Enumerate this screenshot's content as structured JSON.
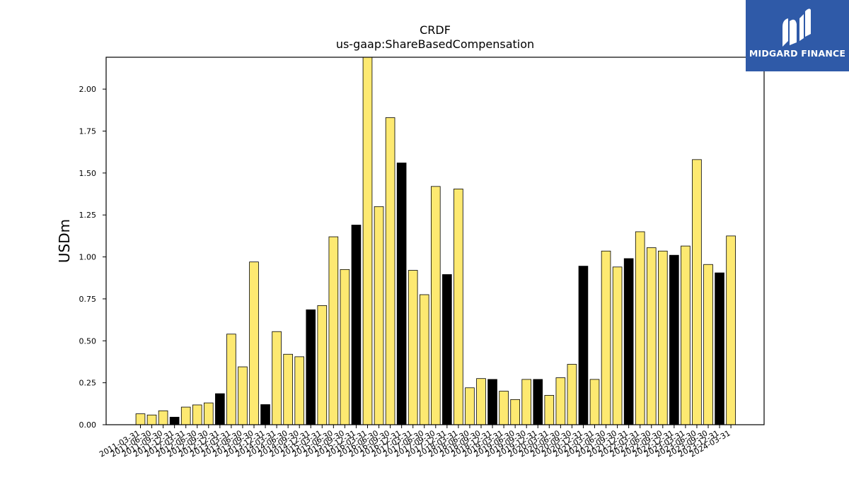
{
  "logo": {
    "text": "MIDGARD FINANCE",
    "icon": "midgard-logo-icon",
    "background": "#2f5aa8"
  },
  "chart_data": {
    "type": "bar",
    "title": "CRDF",
    "subtitle": "us-gaap:ShareBasedCompensation",
    "xlabel": "",
    "ylabel": "USDm",
    "ylim": [
      0,
      2.19
    ],
    "yticks": [
      "0.00",
      "0.25",
      "0.50",
      "0.75",
      "1.00",
      "1.25",
      "1.50",
      "1.75",
      "2.00"
    ],
    "grid": false,
    "colors": {
      "default": "#fde971",
      "highlight": "#000000",
      "edge": "#000000"
    },
    "categories": [
      "2011-03-31",
      "2011-06-30",
      "2011-09-30",
      "2011-12-31",
      "2012-03-31",
      "2012-06-30",
      "2012-09-30",
      "2012-12-31",
      "2013-03-31",
      "2013-06-30",
      "2013-09-30",
      "2013-12-31",
      "2014-03-31",
      "2014-06-30",
      "2014-09-30",
      "2014-12-31",
      "2015-03-31",
      "2015-06-30",
      "2015-09-30",
      "2015-12-31",
      "2016-03-31",
      "2016-06-30",
      "2016-09-30",
      "2016-12-31",
      "2017-03-31",
      "2017-06-30",
      "2017-09-30",
      "2017-12-31",
      "2018-03-31",
      "2018-06-30",
      "2018-09-30",
      "2018-12-31",
      "2019-03-31",
      "2019-06-30",
      "2019-09-30",
      "2019-12-31",
      "2020-03-31",
      "2020-06-30",
      "2020-09-30",
      "2020-12-31",
      "2021-03-31",
      "2021-06-30",
      "2021-09-30",
      "2021-12-31",
      "2022-03-31",
      "2022-06-30",
      "2022-09-30",
      "2022-12-31",
      "2023-03-31",
      "2023-06-30",
      "2023-09-30",
      "2023-12-31",
      "2024-03-31"
    ],
    "values": [
      0.065,
      0.058,
      0.083,
      0.045,
      0.105,
      0.118,
      0.13,
      0.185,
      0.54,
      0.345,
      0.97,
      0.12,
      0.555,
      0.42,
      0.405,
      0.685,
      0.71,
      1.12,
      0.925,
      1.19,
      2.19,
      1.3,
      1.83,
      1.56,
      0.92,
      0.775,
      1.42,
      0.895,
      1.405,
      0.22,
      0.275,
      0.27,
      0.2,
      0.15,
      0.27,
      0.27,
      0.175,
      0.28,
      0.36,
      0.945,
      0.27,
      1.035,
      0.94,
      0.99,
      1.15,
      1.055,
      1.035,
      1.01,
      1.065,
      1.58,
      0.955,
      0.905,
      1.125
    ],
    "highlight": [
      false,
      false,
      false,
      true,
      false,
      false,
      false,
      true,
      false,
      false,
      false,
      true,
      false,
      false,
      false,
      true,
      false,
      false,
      false,
      true,
      false,
      false,
      false,
      true,
      false,
      false,
      false,
      true,
      false,
      false,
      false,
      true,
      false,
      false,
      false,
      true,
      false,
      false,
      false,
      true,
      false,
      false,
      false,
      true,
      false,
      false,
      false,
      true,
      false,
      false,
      false,
      true,
      false
    ]
  }
}
